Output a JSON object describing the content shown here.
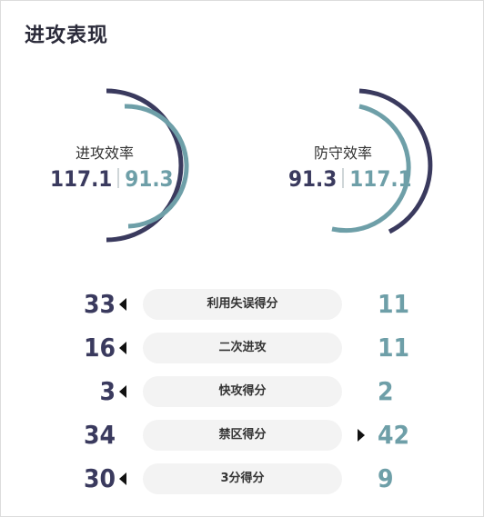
{
  "title": "进攻表现",
  "colors": {
    "dark": "#3a3a5e",
    "teal": "#6e9fa8"
  },
  "gauges": [
    {
      "label": "进攻效率",
      "value_a": "117.1",
      "value_b": "91.3"
    },
    {
      "label": "防守效率",
      "value_a": "91.3",
      "value_b": "117.1"
    }
  ],
  "rows": [
    {
      "label": "利用失误得分",
      "left": "33",
      "right": "11",
      "leader": "left"
    },
    {
      "label": "二次进攻",
      "left": "16",
      "right": "11",
      "leader": "left"
    },
    {
      "label": "快攻得分",
      "left": "3",
      "right": "2",
      "leader": "left"
    },
    {
      "label": "禁区得分",
      "left": "34",
      "right": "42",
      "leader": "right"
    },
    {
      "label": "3分得分",
      "left": "30",
      "right": "9",
      "leader": "left"
    }
  ]
}
